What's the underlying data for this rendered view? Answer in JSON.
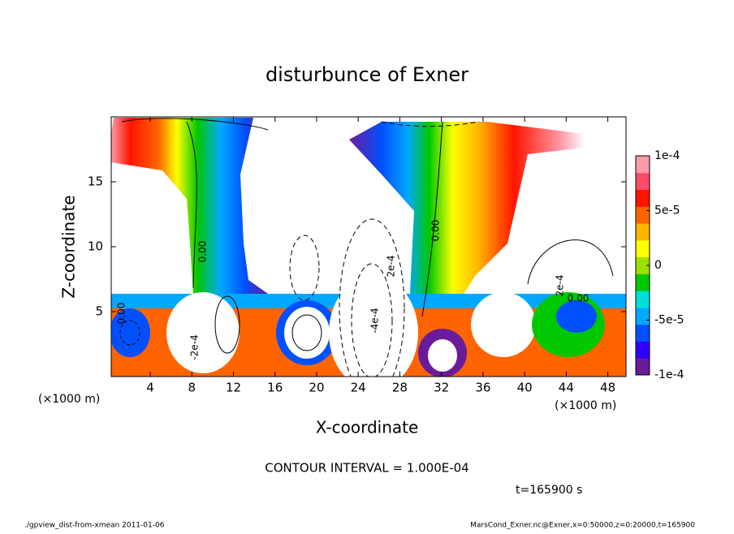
{
  "chart_data": {
    "type": "contour",
    "title": "disturbunce of Exner",
    "x_label": "X-coordinate",
    "y_label": "Z-coordinate",
    "x_unit_label": "(×1000 m)",
    "xlim": [
      0.25,
      49.75
    ],
    "ylim": [
      0,
      20
    ],
    "xticks": [
      4,
      8,
      12,
      16,
      20,
      24,
      28,
      32,
      36,
      40,
      44,
      48
    ],
    "yticks": [
      5,
      10,
      15
    ],
    "colorbar": {
      "lim": [
        -0.0001,
        0.0001
      ],
      "ticks": [
        {
          "value": 0.0001,
          "label": "1e-4"
        },
        {
          "value": 5e-05,
          "label": "5e-5"
        },
        0,
        {
          "value": -5e-05,
          "label": "-5e-5"
        },
        {
          "value": -0.0001,
          "label": "-1e-4"
        }
      ],
      "colors": [
        "#6a1b9a",
        "#3000ff",
        "#0050ff",
        "#00a8ff",
        "#00e0d8",
        "#00c800",
        "#9ee000",
        "#ffff00",
        "#ffb400",
        "#ff6400",
        "#ff1400",
        "#ff4a6a",
        "#ff9aa8"
      ]
    },
    "contour_labels": [
      "0.00",
      "0.00",
      "0.00",
      "2e-4",
      "-4e-4",
      "2e-4",
      "-2e-4",
      "0.00"
    ],
    "contour_interval": "CONTOUR INTERVAL = 1.000E-04",
    "time_label": "t=165900 s",
    "footer_left": "./gpview_dist-from-xmean  2011-01-06",
    "footer_right": "MarsCond_Exner.nc@Exner,x=0:50000,z=0:20000,t=165900"
  }
}
